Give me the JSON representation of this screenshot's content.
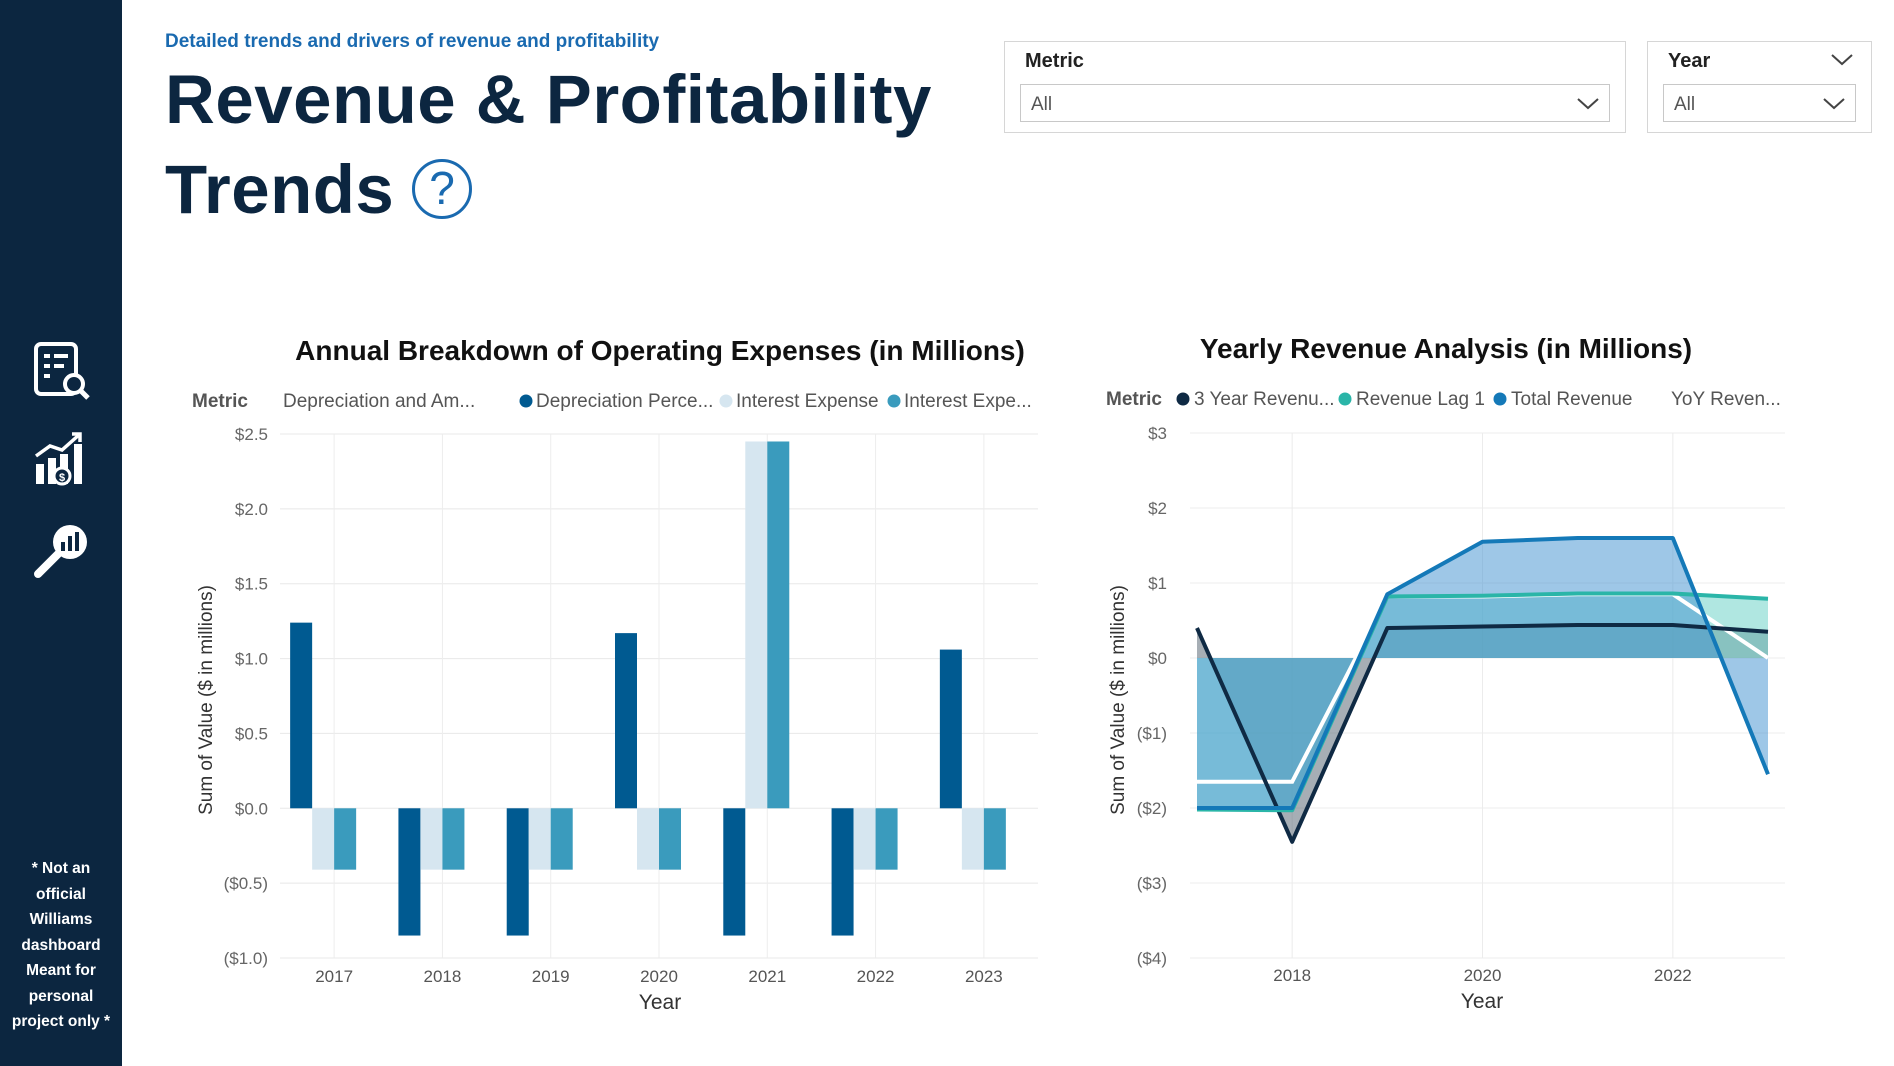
{
  "sidebar": {
    "icons": [
      {
        "name": "report-search-icon",
        "label": "Report"
      },
      {
        "name": "revenue-growth-icon",
        "label": "Revenue growth"
      },
      {
        "name": "analytics-magnifier-icon",
        "label": "Analytics"
      }
    ],
    "disclaimer_lines": [
      "* Not an",
      "official",
      "Williams",
      "dashboard",
      "Meant for",
      "personal",
      "project only *"
    ]
  },
  "header": {
    "subtitle": "Detailed trends and drivers of revenue and profitability",
    "title_line1": "Revenue & Profitability",
    "title_line2": "Trends",
    "help_symbol": "?"
  },
  "filters": {
    "metric": {
      "label": "Metric",
      "value": "All"
    },
    "year": {
      "label": "Year",
      "value": "All"
    }
  },
  "colors": {
    "navy": "#0c2640",
    "dark_blue": "#005a91",
    "light_blue": "#d6e6f0",
    "teal_blue": "#3a9bbd",
    "line_dark": "#0f2a44",
    "line_teal": "#2ab5a8",
    "line_blue": "#1479b8"
  },
  "chart_data": [
    {
      "type": "bar",
      "title": "Annual Breakdown of Operating Expenses (in Millions)",
      "legend_title": "Metric",
      "xlabel": "Year",
      "ylabel": "Sum of Value ($ in millions)",
      "categories": [
        "2017",
        "2018",
        "2019",
        "2020",
        "2021",
        "2022",
        "2023"
      ],
      "ylim": [
        -1.0,
        2.5
      ],
      "yticks": [
        "$2.5",
        "$2.0",
        "$1.5",
        "$1.0",
        "$0.5",
        "$0.0",
        "($0.5)",
        "($1.0)"
      ],
      "series": [
        {
          "name": "Depreciation and Am...",
          "values": [
            0,
            0,
            0,
            0,
            0,
            0,
            0
          ]
        },
        {
          "name": "Depreciation Perce...",
          "values": [
            1.24,
            -0.85,
            -0.85,
            1.17,
            -0.85,
            -0.85,
            1.06
          ]
        },
        {
          "name": "Interest Expense",
          "values": [
            -0.41,
            -0.41,
            -0.41,
            -0.41,
            2.45,
            -0.41,
            -0.41
          ]
        },
        {
          "name": "Interest Expe...",
          "values": [
            -0.41,
            -0.41,
            -0.41,
            -0.41,
            2.45,
            -0.41,
            -0.41
          ]
        }
      ],
      "legend_position": "top",
      "grid": true
    },
    {
      "type": "area",
      "title": "Yearly Revenue Analysis (in Millions)",
      "legend_title": "Metric",
      "xlabel": "Year",
      "ylabel": "Sum of Value ($ in millions)",
      "x": [
        2017,
        2018,
        2019,
        2020,
        2021,
        2022,
        2023
      ],
      "xticks": [
        "2018",
        "2020",
        "2022"
      ],
      "ylim": [
        -4,
        3
      ],
      "yticks": [
        "$3",
        "$2",
        "$1",
        "$0",
        "($1)",
        "($2)",
        "($3)",
        "($4)"
      ],
      "series": [
        {
          "name": "3 Year Revenu...",
          "values": [
            0.4,
            -2.45,
            0.4,
            0.42,
            0.44,
            0.44,
            0.35
          ]
        },
        {
          "name": "Revenue Lag 1",
          "values": [
            -2.02,
            -2.03,
            0.82,
            0.83,
            0.86,
            0.86,
            0.79
          ]
        },
        {
          "name": "Total Revenue",
          "values": [
            -2.0,
            -2.0,
            0.85,
            1.55,
            1.6,
            1.6,
            -1.55
          ]
        },
        {
          "name": "YoY Reven...",
          "values": [
            -1.65,
            -1.65,
            0.82,
            0.82,
            0.85,
            0.85,
            0.0
          ]
        }
      ],
      "legend_position": "top",
      "grid": true
    }
  ]
}
